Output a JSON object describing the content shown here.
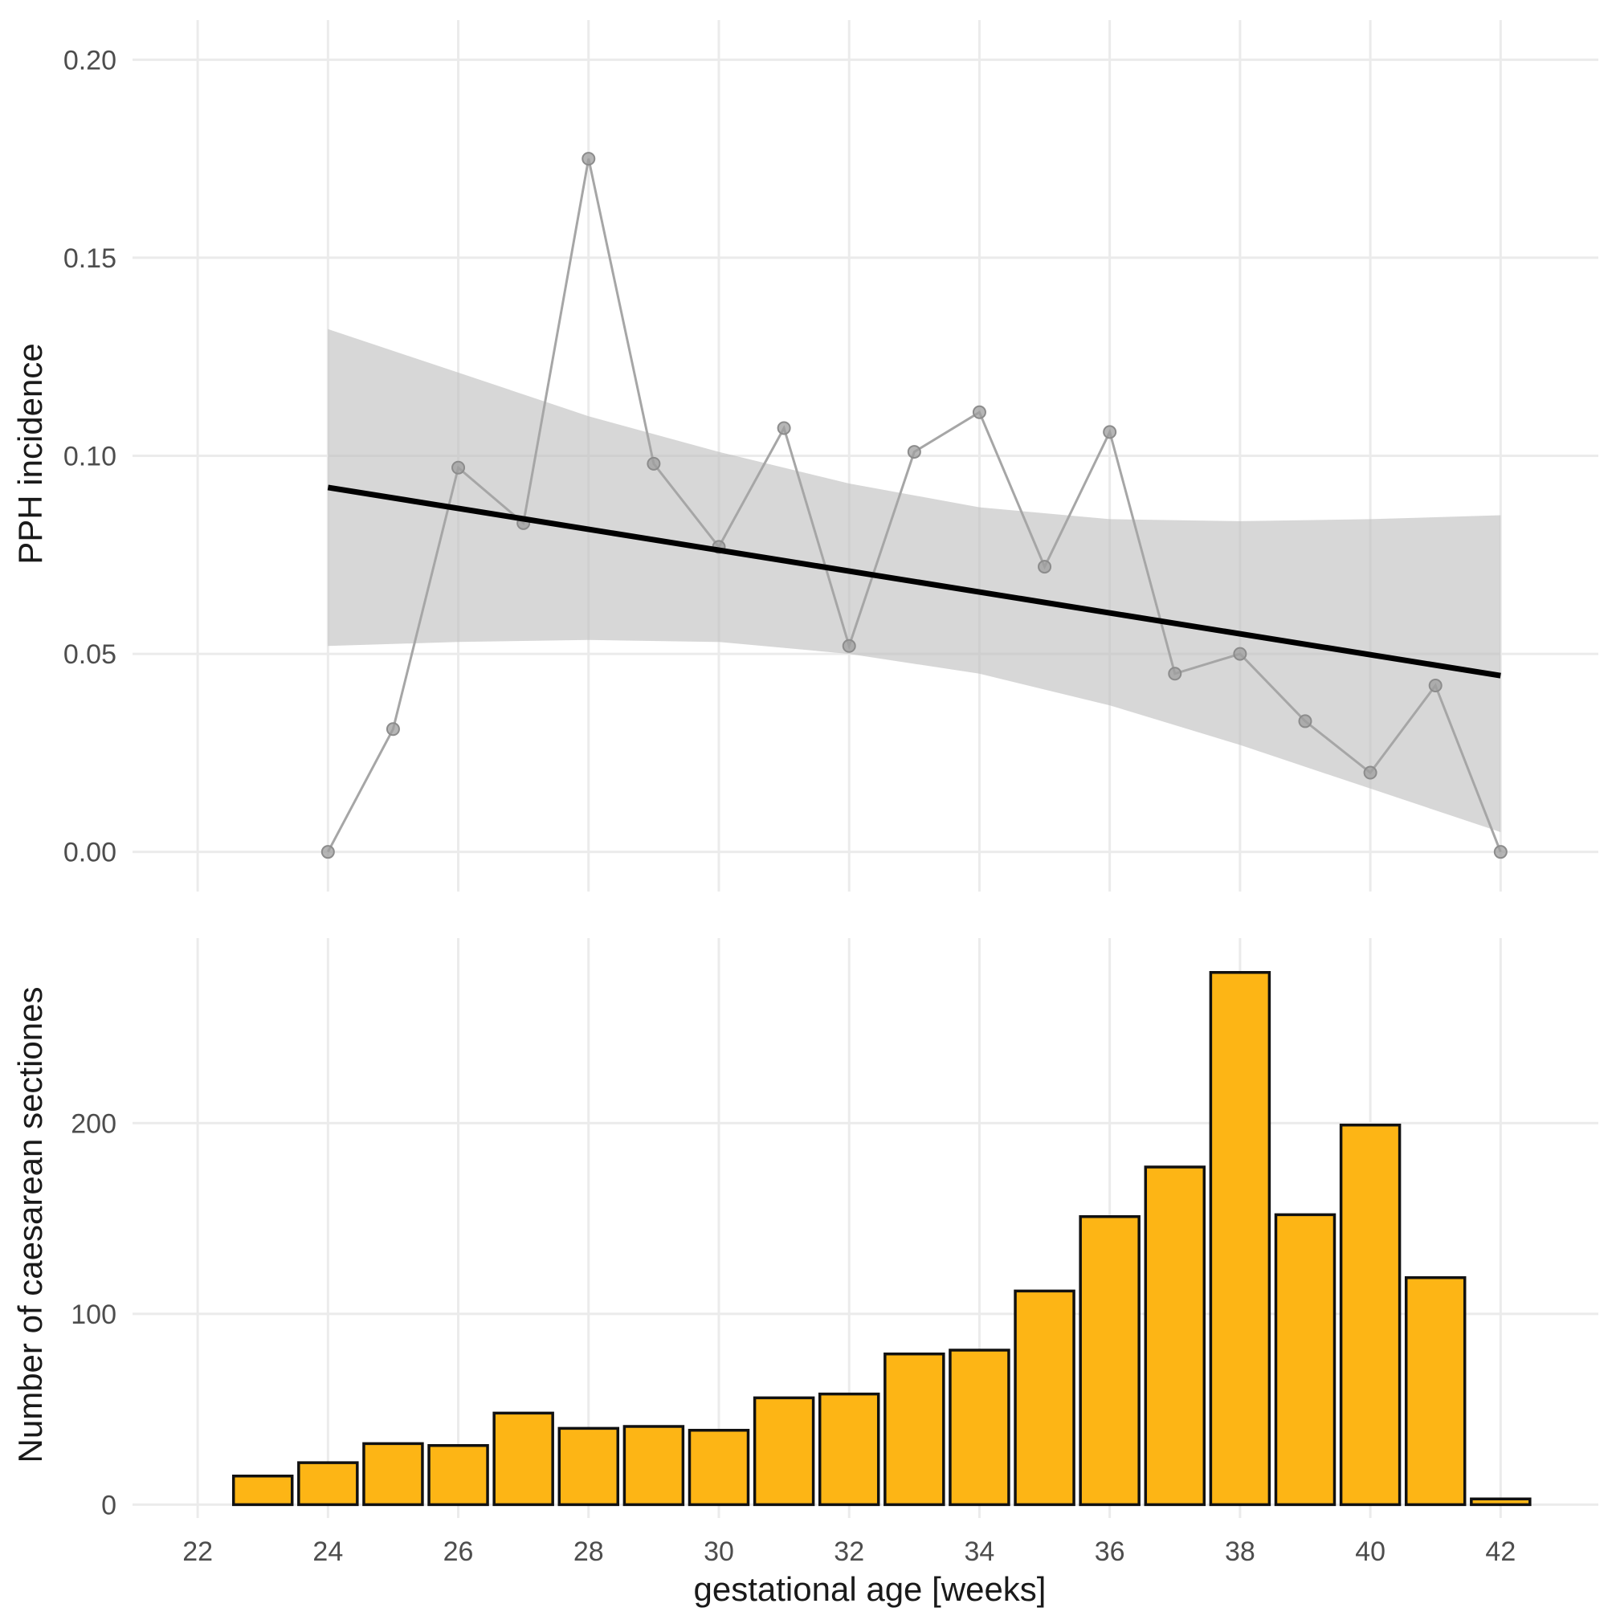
{
  "colors": {
    "bar_fill": "#FDB515",
    "band_fill": "#BDBDBD",
    "observed_line": "#A6A6A6",
    "fit_line": "#000000"
  },
  "chart_data": [
    {
      "type": "line",
      "panel": "top",
      "ylabel": "PPH incidence",
      "xlabel": "",
      "xlim": [
        21,
        43.5
      ],
      "ylim": [
        -0.01,
        0.21
      ],
      "x_ticks": [
        "22",
        "24",
        "26",
        "28",
        "30",
        "32",
        "34",
        "36",
        "38",
        "40",
        "42"
      ],
      "y_ticks": [
        "0.00",
        "0.05",
        "0.10",
        "0.15",
        "0.20"
      ],
      "y_tick_values": [
        0.0,
        0.05,
        0.1,
        0.15,
        0.2
      ],
      "grid": true,
      "series": [
        {
          "name": "observed",
          "style": "line+points",
          "x": [
            24,
            25,
            26,
            27,
            28,
            29,
            30,
            31,
            32,
            33,
            34,
            35,
            36,
            37,
            38,
            39,
            40,
            41,
            42
          ],
          "y": [
            0.0,
            0.031,
            0.097,
            0.083,
            0.175,
            0.098,
            0.077,
            0.107,
            0.052,
            0.101,
            0.111,
            0.072,
            0.106,
            0.045,
            0.05,
            0.033,
            0.02,
            0.042,
            0.0
          ]
        },
        {
          "name": "linear fit",
          "style": "line",
          "x": [
            24,
            42
          ],
          "y": [
            0.092,
            0.0445
          ]
        },
        {
          "name": "95% confidence band",
          "style": "ribbon",
          "x": [
            24,
            26,
            28,
            30,
            32,
            34,
            36,
            38,
            40,
            42
          ],
          "upper": [
            0.132,
            0.121,
            0.11,
            0.101,
            0.093,
            0.087,
            0.084,
            0.0835,
            0.084,
            0.085
          ],
          "lower": [
            0.052,
            0.053,
            0.0535,
            0.053,
            0.05,
            0.045,
            0.037,
            0.027,
            0.016,
            0.005
          ]
        }
      ]
    },
    {
      "type": "bar",
      "panel": "bottom",
      "ylabel": "Number of caesarean sectiones",
      "xlabel": "gestational age [weeks]",
      "xlim": [
        21,
        43.5
      ],
      "ylim": [
        -7,
        297
      ],
      "x_ticks": [
        "22",
        "24",
        "26",
        "28",
        "30",
        "32",
        "34",
        "36",
        "38",
        "40",
        "42"
      ],
      "y_ticks": [
        "0",
        "100",
        "200"
      ],
      "y_tick_values": [
        0,
        100,
        200
      ],
      "grid": true,
      "categories": [
        23,
        24,
        25,
        26,
        27,
        28,
        29,
        30,
        31,
        32,
        33,
        34,
        35,
        36,
        37,
        38,
        39,
        40,
        41,
        42
      ],
      "values": [
        15,
        22,
        32,
        31,
        48,
        40,
        41,
        39,
        56,
        58,
        79,
        81,
        112,
        151,
        177,
        279,
        152,
        199,
        119,
        3
      ]
    }
  ]
}
